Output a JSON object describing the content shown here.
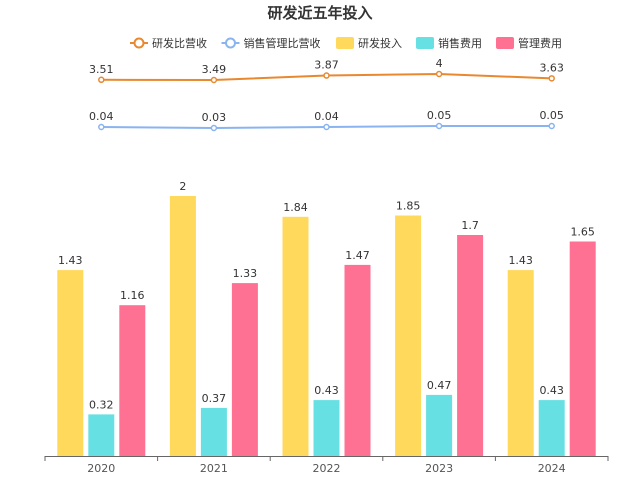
{
  "chart_data": {
    "type": "bar",
    "title": "研发近五年投入",
    "categories": [
      "2020",
      "2021",
      "2022",
      "2023",
      "2024"
    ],
    "bar_series": [
      {
        "name": "研发投入",
        "color": "#FFD95C",
        "values": [
          1.43,
          2,
          1.84,
          1.85,
          1.43
        ]
      },
      {
        "name": "销售费用",
        "color": "#66E0E3",
        "values": [
          0.32,
          0.37,
          0.43,
          0.47,
          0.43
        ]
      },
      {
        "name": "管理费用",
        "color": "#FF7193",
        "values": [
          1.16,
          1.33,
          1.47,
          1.7,
          1.65
        ]
      }
    ],
    "line_series": [
      {
        "name": "研发比营收",
        "color": "#E8892F",
        "values": [
          3.51,
          3.49,
          3.87,
          4,
          3.63
        ]
      },
      {
        "name": "销售管理比营收",
        "color": "#8AB4F0",
        "values": [
          0.04,
          0.03,
          0.04,
          0.05,
          0.05
        ]
      }
    ],
    "legend_position": "top-center",
    "grid": false
  }
}
